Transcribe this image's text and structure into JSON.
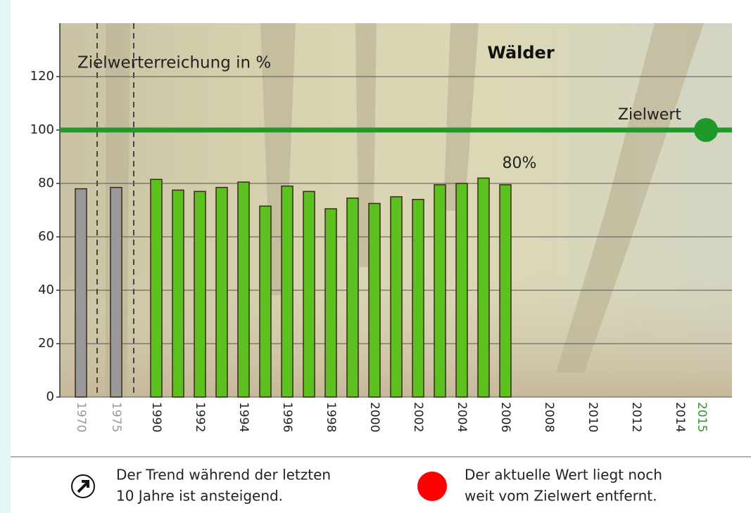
{
  "chart_data": {
    "type": "bar",
    "title": "Wälder",
    "y_label": "Zielwerterreichung in %",
    "categories": [
      "1970",
      "1975",
      "1990",
      null,
      "1992",
      null,
      "1994",
      null,
      "1996",
      null,
      "1998",
      null,
      "2000",
      null,
      "2002",
      null,
      "2004",
      null,
      "2006",
      null,
      "2008",
      null,
      "2010",
      null,
      "2012",
      null,
      "2014",
      "2015"
    ],
    "values": [
      78,
      78.5,
      81.5,
      77.5,
      77,
      78.5,
      80.5,
      71.5,
      79,
      77,
      70.5,
      74.5,
      72.5,
      75,
      74,
      79.5,
      80,
      82,
      79.5,
      null,
      null,
      null,
      null,
      null,
      null,
      null,
      null,
      null
    ],
    "colors": [
      "#999999",
      "#999999",
      "#5cc11f",
      "#5cc11f",
      "#5cc11f",
      "#5cc11f",
      "#5cc11f",
      "#5cc11f",
      "#5cc11f",
      "#5cc11f",
      "#5cc11f",
      "#5cc11f",
      "#5cc11f",
      "#5cc11f",
      "#5cc11f",
      "#5cc11f",
      "#5cc11f",
      "#5cc11f",
      "#5cc11f",
      null,
      null,
      null,
      null,
      null,
      null,
      null,
      null,
      null
    ],
    "category_label_colors": [
      "#999999",
      "#999999",
      "#222222",
      null,
      "#222222",
      null,
      "#222222",
      null,
      "#222222",
      null,
      "#222222",
      null,
      "#222222",
      null,
      "#222222",
      null,
      "#222222",
      null,
      "#222222",
      null,
      "#222222",
      null,
      "#222222",
      null,
      "#222222",
      null,
      "#222222",
      "#2a9a2a"
    ],
    "target": 100,
    "target_label": "Zielwert",
    "target_color": "#1f9a2a",
    "annotation": "80%",
    "ylim": [
      0,
      140
    ],
    "yticks": [
      0,
      20,
      40,
      60,
      80,
      100,
      120
    ],
    "grid": true
  },
  "footer": {
    "trend_text": [
      "Der Trend während der letzten",
      "10 Jahre ist ansteigend."
    ],
    "status_text": [
      "Der aktuelle Wert liegt noch",
      "weit vom Zielwert entfernt."
    ]
  }
}
